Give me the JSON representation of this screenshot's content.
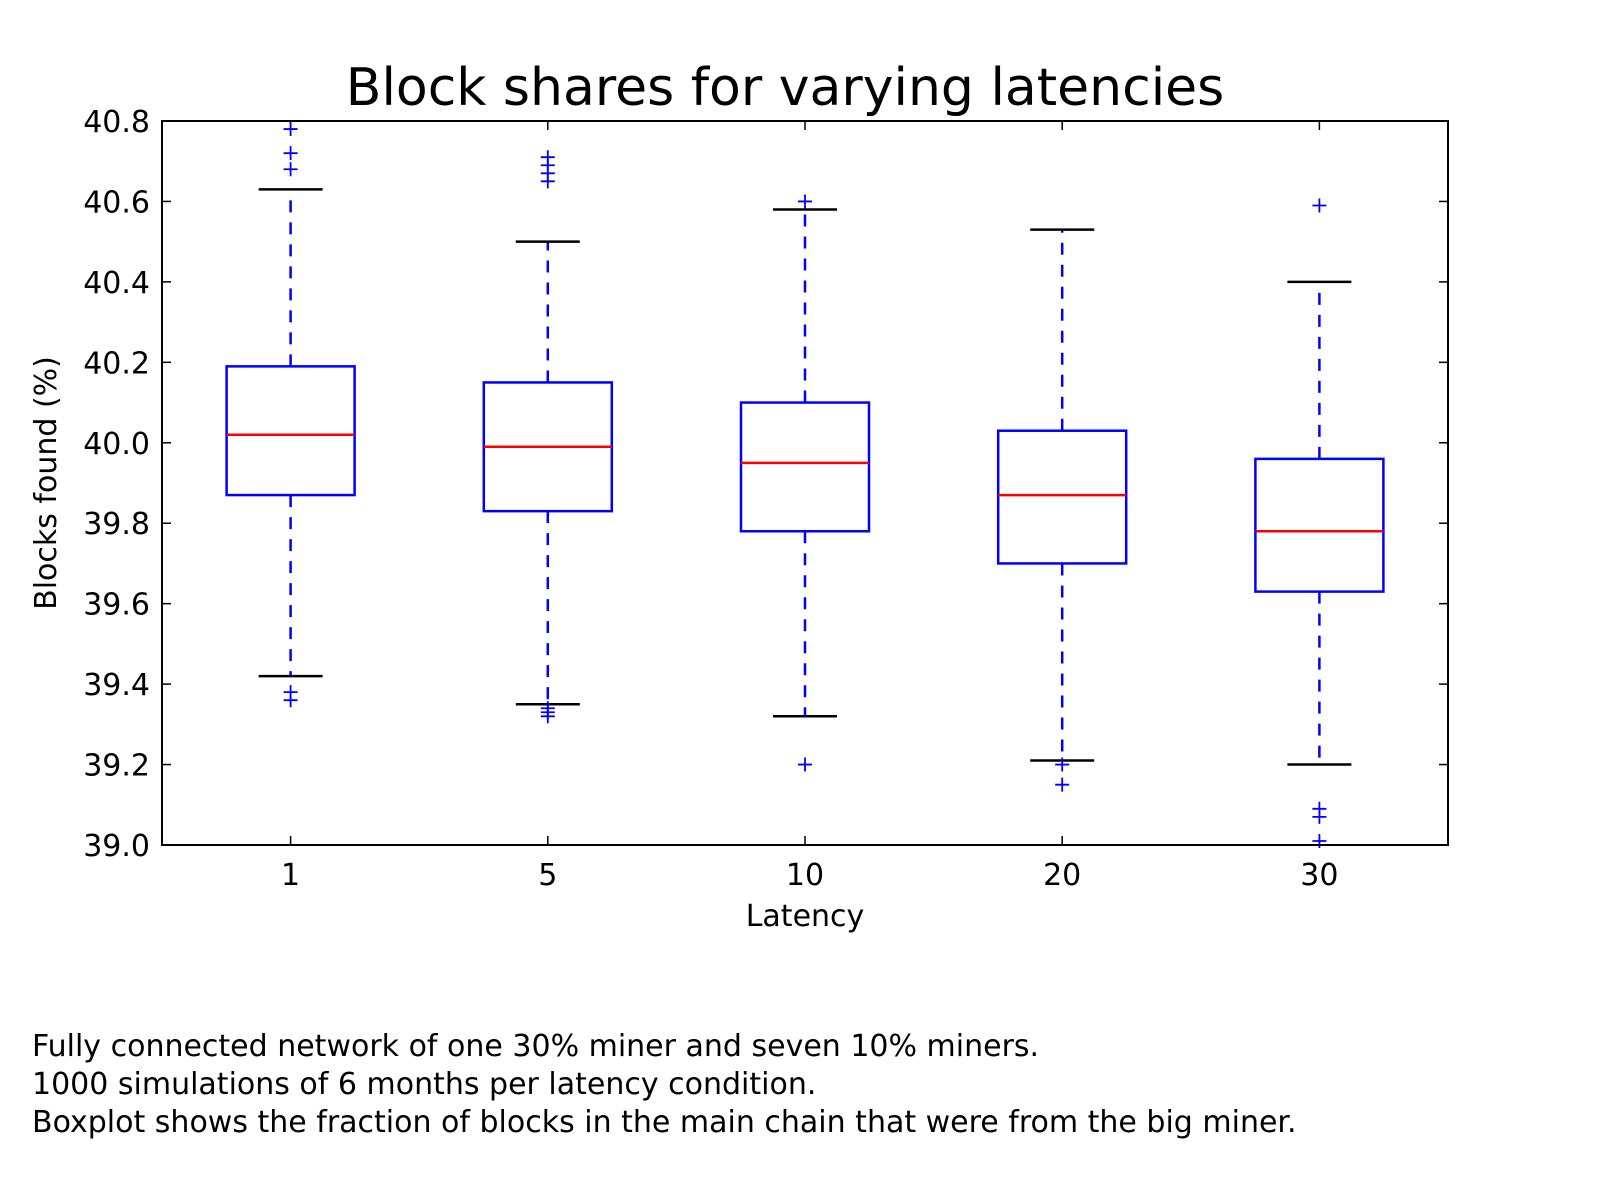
{
  "chart_data": {
    "type": "boxplot",
    "title": "Block shares for varying latencies",
    "xlabel": "Latency",
    "ylabel": "Blocks found (%)",
    "ylim": [
      39.0,
      40.8
    ],
    "yticks": [
      "39.0",
      "39.2",
      "39.4",
      "39.6",
      "39.8",
      "40.0",
      "40.2",
      "40.4",
      "40.6",
      "40.8"
    ],
    "categories": [
      "1",
      "5",
      "10",
      "20",
      "30"
    ],
    "boxes": [
      {
        "category": "1",
        "whisker_low": 39.42,
        "q1": 39.87,
        "median": 40.02,
        "q3": 40.19,
        "whisker_high": 40.63,
        "outliers": [
          39.36,
          39.38,
          40.68,
          40.72,
          40.78
        ]
      },
      {
        "category": "5",
        "whisker_low": 39.35,
        "q1": 39.83,
        "median": 39.99,
        "q3": 40.15,
        "whisker_high": 40.5,
        "outliers": [
          39.32,
          39.33,
          39.34,
          40.65,
          40.67,
          40.69,
          40.71
        ]
      },
      {
        "category": "10",
        "whisker_low": 39.32,
        "q1": 39.78,
        "median": 39.95,
        "q3": 40.1,
        "whisker_high": 40.58,
        "outliers": [
          39.2,
          40.6
        ]
      },
      {
        "category": "20",
        "whisker_low": 39.21,
        "q1": 39.7,
        "median": 39.87,
        "q3": 40.03,
        "whisker_high": 40.53,
        "outliers": [
          39.15,
          39.2
        ]
      },
      {
        "category": "30",
        "whisker_low": 39.2,
        "q1": 39.63,
        "median": 39.78,
        "q3": 39.96,
        "whisker_high": 40.4,
        "outliers": [
          39.01,
          39.07,
          39.09,
          40.59
        ]
      }
    ],
    "grid": false,
    "colors": {
      "box": "#0000ff",
      "median": "#ff0000",
      "whisker_cap": "#000000",
      "outlier": "#0000ff"
    }
  },
  "caption": [
    "Fully connected network of one 30% miner and seven 10% miners.",
    "1000 simulations of 6 months per latency condition.",
    "Boxplot shows the fraction of blocks in the main chain that were from the big miner."
  ]
}
